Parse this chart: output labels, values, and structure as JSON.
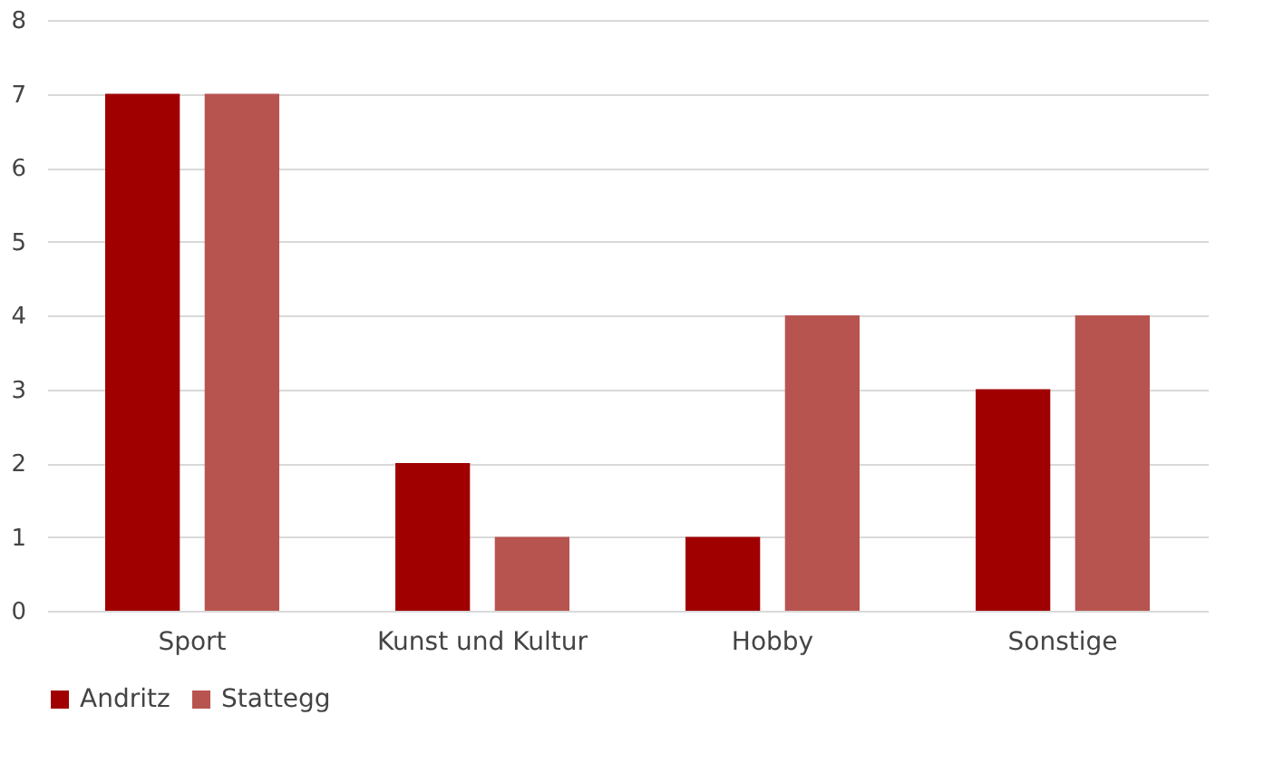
{
  "chart_data": {
    "type": "bar",
    "categories": [
      "Sport",
      "Kunst und Kultur",
      "Hobby",
      "Sonstige"
    ],
    "series": [
      {
        "name": "Andritz",
        "color": "#a00000",
        "values": [
          7,
          2,
          1,
          3
        ]
      },
      {
        "name": "Stattegg",
        "color": "#b85450",
        "values": [
          7,
          1,
          4,
          4
        ]
      }
    ],
    "ylim": [
      0,
      8
    ],
    "yticks": [
      0,
      1,
      2,
      3,
      4,
      5,
      6,
      7,
      8
    ],
    "grid": "y",
    "legend": "bottom"
  }
}
